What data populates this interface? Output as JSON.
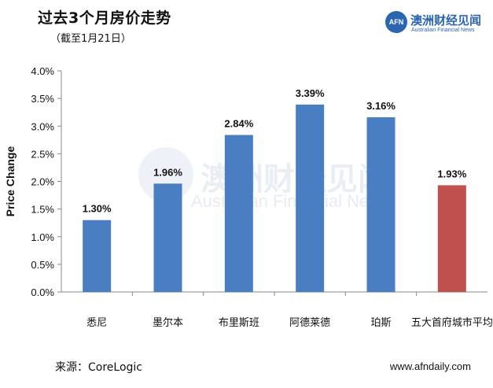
{
  "header": {
    "title": "过去3个月房价走势",
    "subtitle": "（截至1月21日）"
  },
  "brand": {
    "logo_mark": "AFN",
    "name_cn": "澳洲财经见闻",
    "name_en": "Australian Financial News",
    "color": "#2b66b1"
  },
  "watermark": {
    "text_cn": "澳洲财经见闻",
    "text_en": "Australian Financial News"
  },
  "chart_data": {
    "type": "bar",
    "title": "过去3个月房价走势",
    "subtitle": "（截至1月21日）",
    "xlabel": "",
    "ylabel": "Price Change",
    "categories": [
      "悉尼",
      "墨尔本",
      "布里斯班",
      "阿德莱德",
      "珀斯",
      "五大首府城市平均"
    ],
    "values": [
      1.3,
      1.96,
      2.84,
      3.39,
      3.16,
      1.93
    ],
    "value_labels": [
      "1.30%",
      "1.96%",
      "2.84%",
      "3.39%",
      "3.16%",
      "1.93%"
    ],
    "bar_colors": [
      "#4a7ec2",
      "#4a7ec2",
      "#4a7ec2",
      "#4a7ec2",
      "#4a7ec2",
      "#c0504d"
    ],
    "ylim": [
      0,
      4.0
    ],
    "yticks": [
      "0.0%",
      "0.5%",
      "1.0%",
      "1.5%",
      "2.0%",
      "2.5%",
      "3.0%",
      "3.5%",
      "4.0%"
    ],
    "grid": false,
    "legend": "none"
  },
  "footer": {
    "source": "来源：CoreLogic",
    "website": "www.afndaily.com"
  }
}
